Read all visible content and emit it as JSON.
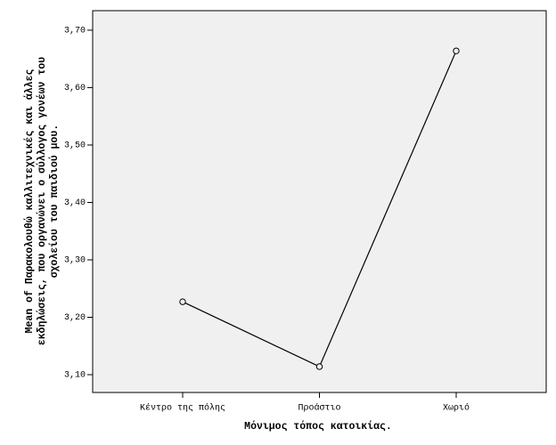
{
  "chart_data": {
    "type": "line",
    "x_label": "Μόνιμος τόπος κατοικίας.",
    "y_label": [
      "Mean of Παρακολουθώ καλλιτεχνικές και άλλες",
      "εκδηλώσεις, που οργανώνει ο σύλλογος γονέων του",
      "σχολείου του παιδιού μου."
    ],
    "categories": [
      "Κέντρο της πόλης",
      "Προάστιο",
      "Χωριό"
    ],
    "values": [
      3.227,
      3.114,
      3.664
    ],
    "color": "#000000",
    "ylim": [
      3.069,
      3.734
    ],
    "yticks": [
      {
        "value": 3.1,
        "label": "3,10"
      },
      {
        "value": 3.2,
        "label": "3,20"
      },
      {
        "value": 3.3,
        "label": "3,30"
      },
      {
        "value": 3.4,
        "label": "3,40"
      },
      {
        "value": 3.5,
        "label": "3,50"
      },
      {
        "value": 3.6,
        "label": "3,60"
      },
      {
        "value": 3.7,
        "label": "3,70"
      }
    ],
    "grid": false
  }
}
